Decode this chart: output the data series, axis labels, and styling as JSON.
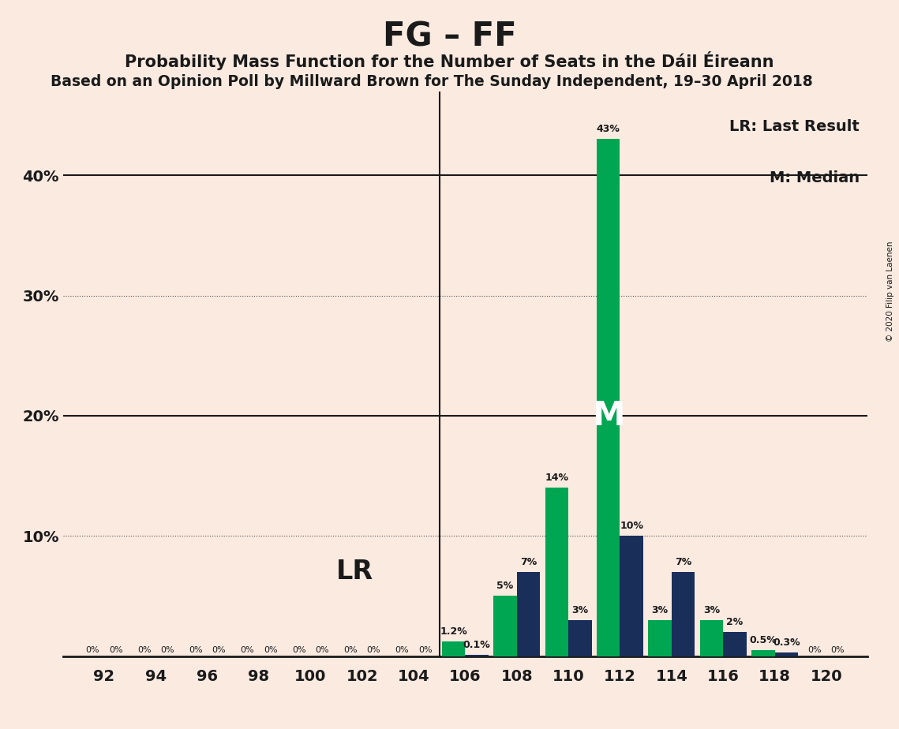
{
  "title": "FG – FF",
  "subtitle": "Probability Mass Function for the Number of Seats in the Dáil Éireann",
  "subtitle2": "Based on an Opinion Poll by Millward Brown for The Sunday Independent, 19–30 April 2018",
  "copyright": "© 2020 Filip van Laenen",
  "seats": [
    92,
    94,
    96,
    98,
    100,
    102,
    104,
    106,
    108,
    110,
    112,
    114,
    116,
    118,
    120
  ],
  "fg_values": [
    0.0,
    0.0,
    0.0,
    0.0,
    0.0,
    0.0,
    0.0,
    0.1,
    7.0,
    3.0,
    10.0,
    7.0,
    2.0,
    0.3,
    0.0
  ],
  "ff_values": [
    0.0,
    0.0,
    0.0,
    0.0,
    0.0,
    0.0,
    0.0,
    1.2,
    5.0,
    14.0,
    43.0,
    3.0,
    3.0,
    0.5,
    0.0
  ],
  "fg_labels": [
    "0%",
    "0%",
    "0%",
    "0%",
    "0%",
    "0%",
    "0%",
    "0.1%",
    "7%",
    "3%",
    "10%",
    "7%",
    "2%",
    "0.3%",
    "0%"
  ],
  "ff_labels": [
    "0%",
    "0%",
    "0%",
    "0%",
    "0%",
    "0%",
    "0%",
    "1.2%",
    "5%",
    "14%",
    "43%",
    "3%",
    "3%",
    "0.5%",
    "0%"
  ],
  "fg_color": "#1a2e5a",
  "ff_color": "#00a651",
  "lr_seat_idx": 6,
  "median_seat_idx": 10,
  "background_color": "#faeae0",
  "ylim": [
    0,
    47
  ],
  "ytick_vals": [
    0,
    10,
    20,
    30,
    40
  ],
  "ytick_labels": [
    "",
    "10%",
    "20%",
    "30%",
    "40%"
  ],
  "legend_text1": "LR: Last Result",
  "legend_text2": "M: Median",
  "lr_label": "LR",
  "median_label": "M"
}
